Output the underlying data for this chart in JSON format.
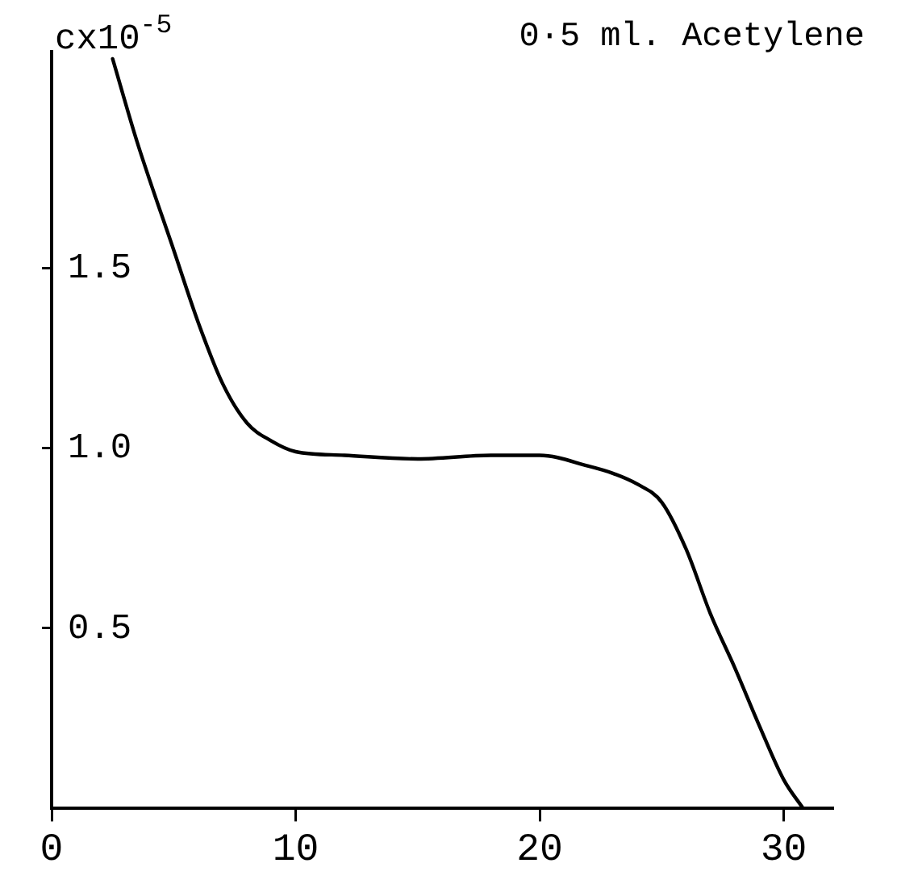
{
  "chart_data": {
    "type": "line",
    "title": "0·5 ml. Acetylene",
    "ylabel": "cx10$^{-5}$",
    "x": [
      2.5,
      3.5,
      5,
      6,
      7,
      8,
      9,
      10,
      12,
      15,
      18,
      20,
      22,
      23,
      24,
      25,
      26,
      27,
      28,
      29,
      30,
      30.8
    ],
    "series": [
      {
        "color": "#000000",
        "values": [
          2.08,
          1.85,
          1.55,
          1.35,
          1.18,
          1.07,
          1.02,
          0.99,
          0.98,
          0.97,
          0.98,
          0.98,
          0.95,
          0.93,
          0.9,
          0.85,
          0.72,
          0.54,
          0.39,
          0.23,
          0.08,
          0
        ]
      }
    ],
    "xlim": [
      0,
      32
    ],
    "ylim": [
      0,
      2.1
    ],
    "xticks": [
      0,
      10,
      20,
      30
    ],
    "yticks": [
      0.5,
      {
        "value": 1,
        "label": "1.0"
      },
      1.5
    ],
    "grid": false,
    "legend": false,
    "marker": "none",
    "line_style": "solid"
  }
}
